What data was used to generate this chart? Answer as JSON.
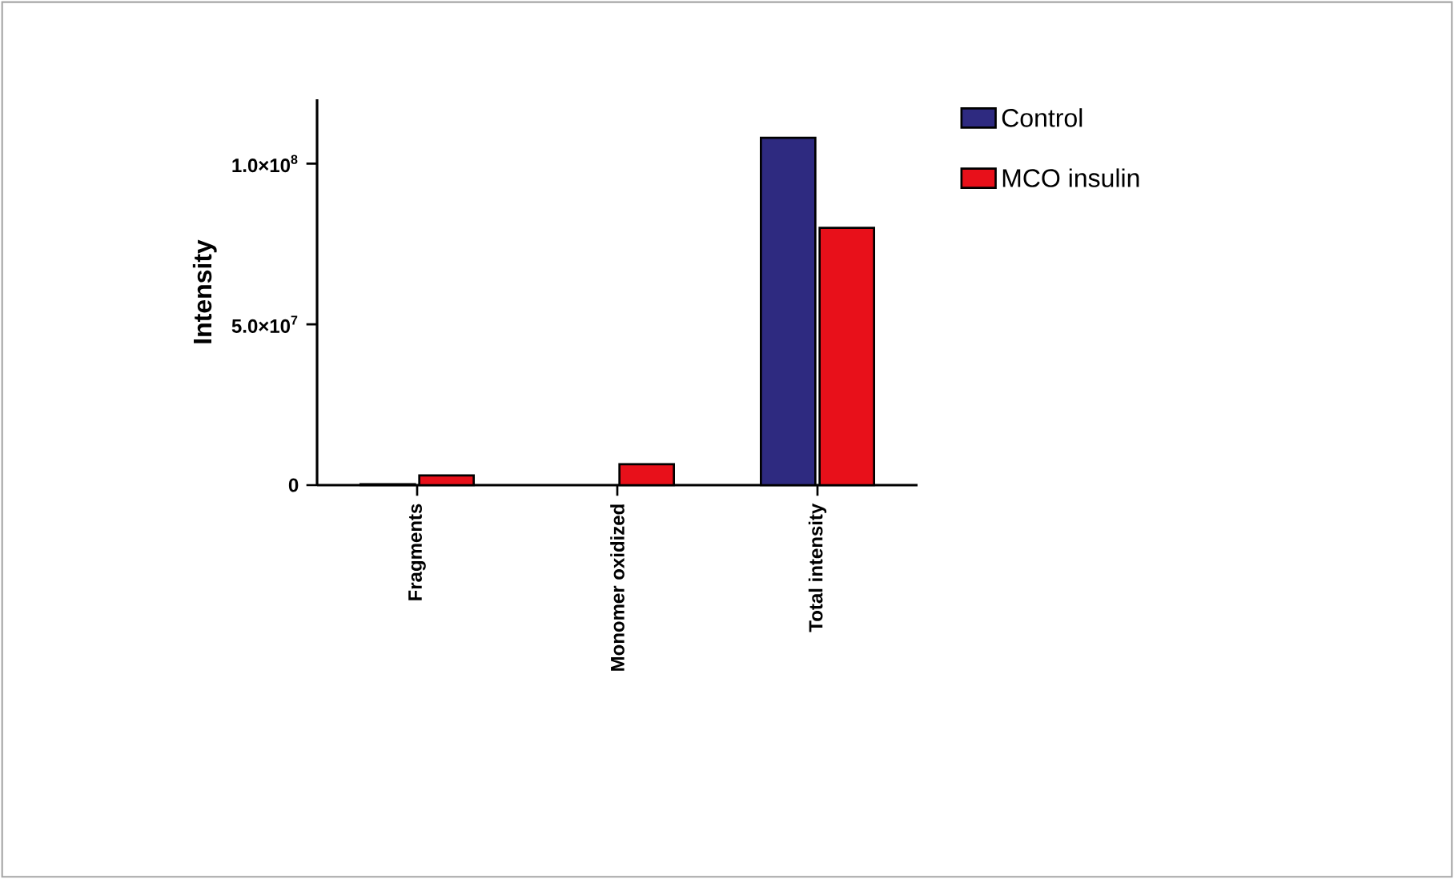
{
  "chart_data": {
    "type": "bar",
    "ylabel": "Intensity",
    "categories": [
      "Fragments",
      "Monomer oxidized",
      "Total intensity"
    ],
    "series": [
      {
        "name": "Control",
        "color": "#2e2a80",
        "values": [
          300000,
          null,
          108000000
        ]
      },
      {
        "name": "MCO insulin",
        "color": "#e8101a",
        "values": [
          3000000,
          6500000,
          80000000
        ]
      }
    ],
    "ylim": [
      0,
      120000000
    ],
    "yticks": [
      0,
      {
        "value": 50000000,
        "label": "5.0×10$^{7}$"
      },
      {
        "value": 100000000,
        "label": "1.0×10$^{8}$"
      }
    ],
    "grid": false,
    "legend": "top right"
  }
}
